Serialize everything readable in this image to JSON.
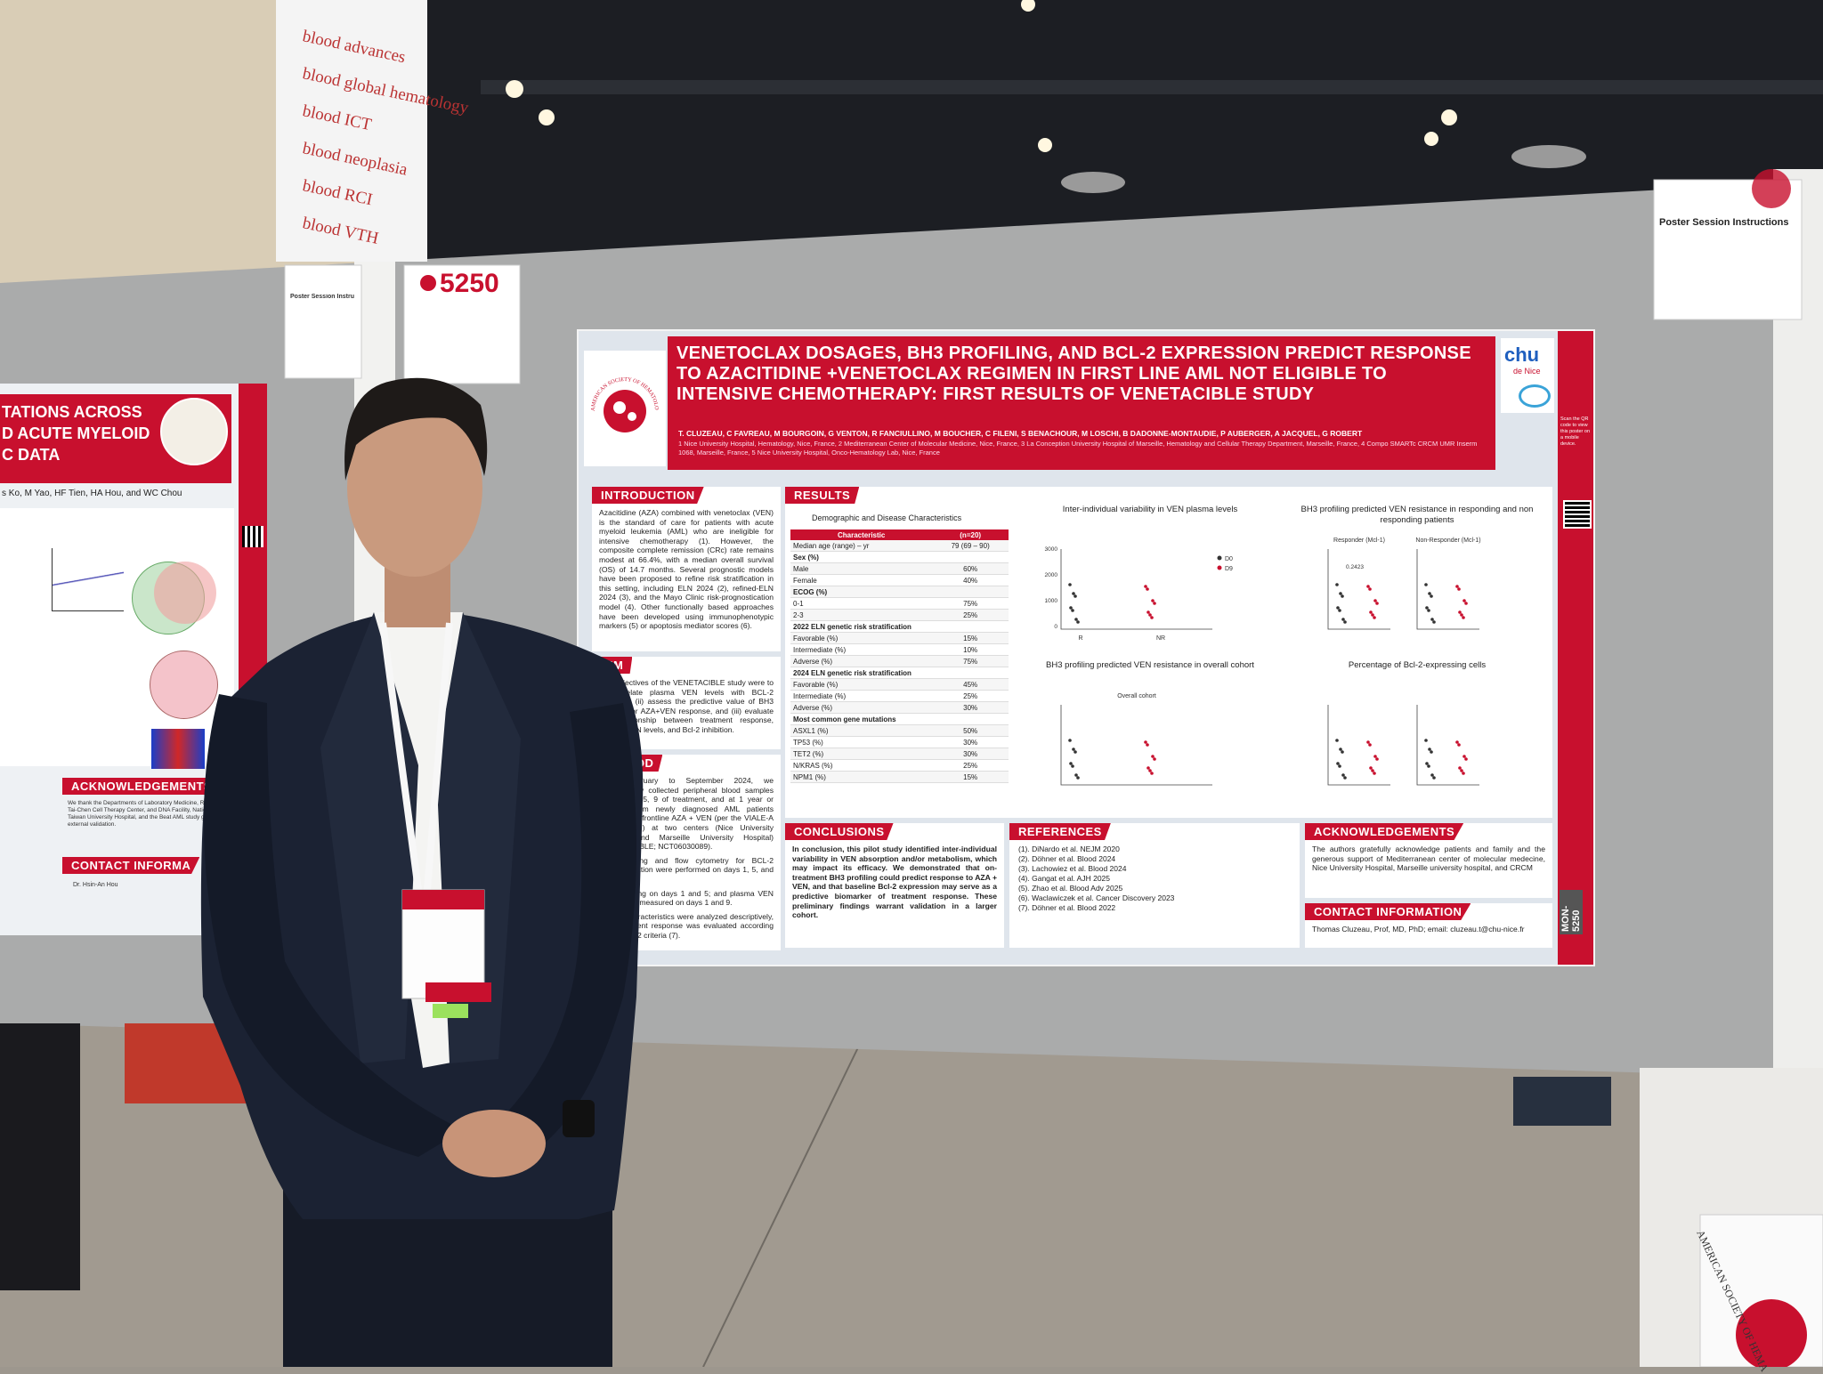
{
  "venue": {
    "banner": [
      "blood advances",
      "blood global hematology",
      "blood ICT",
      "blood neoplasia",
      "blood RCI",
      "blood VTH"
    ],
    "booth_number": "5250",
    "instructions_left": "Poster Session Instru",
    "instructions_right": "Poster Session Instructions",
    "floor_sign": "AMERICAN SOCIETY OF HEMA"
  },
  "left_poster": {
    "title_lines": [
      "TATIONS ACROSS",
      "D ACUTE MYELOID",
      "C DATA"
    ],
    "authors": "s Ko, M Yao, HF Tien, HA Hou, and WC Chou",
    "acknowledgements_heading": "ACKNOWLEDGEMENTS",
    "acknowledgements_text": "We thank the Departments of Laboratory Medicine, Research, Tai-Chen Cell Therapy Center, and DNA Facility, National Taiwan University Hospital, and the Beat AML study group for external validation.",
    "contact_heading": "CONTACT INFORMA",
    "contact_name": "Dr. Hsin-An Hou"
  },
  "poster": {
    "society": "AMERICAN SOCIETY OF HEMATOLOGY",
    "title": "VENETOCLAX DOSAGES, BH3 PROFILING, AND BCL-2 EXPRESSION PREDICT RESPONSE TO AZACITIDINE +VENETOCLAX REGIMEN IN FIRST LINE AML NOT ELIGIBLE TO INTENSIVE CHEMOTHERAPY: FIRST RESULTS OF VENETACIBLE STUDY",
    "authors": "T. CLUZEAU, C FAVREAU, M BOURGOIN, G VENTON, R FANCIULLINO, M BOUCHER, C FILENI, S BENACHOUR, M LOSCHI, B DADONNE-MONTAUDIE, P AUBERGER, A JACQUEL, G ROBERT",
    "affiliations": "1 Nice University Hospital, Hematology, Nice, France, 2 Mediterranean Center of Molecular Medicine, Nice, France, 3 La Conception University Hospital of Marseille, Hematology and Cellular Therapy Department, Marseille, France, 4 Compo SMARTc CRCM UMR Inserm 1068, Marseille, France, 5 Nice University Hospital, Onco-Hematology Lab, Nice, France",
    "institution_logo": [
      "chu",
      "de Nice"
    ],
    "introduction": {
      "heading": "INTRODUCTION",
      "text": "Azacitidine (AZA) combined with venetoclax (VEN) is the standard of care for patients with acute myeloid leukemia (AML) who are ineligible for intensive chemotherapy (1). However, the composite complete remission (CRc) rate remains modest at 66.4%, with a median overall survival (OS) of 14.7 months. Several prognostic models have been proposed to refine risk stratification in this setting, including ELN 2024 (2), refined-ELN 2024 (3), and the Mayo Clinic risk-prognostication model (4). Other functionally based approaches have been developed using immunophenotypic markers (5) or apoptosis mediator scores (6)."
    },
    "aim": {
      "heading": "AIM",
      "text": "The objectives of the VENETACIBLE study were to (i) correlate plasma VEN levels with BCL-2 inhibition, (ii) assess the predictive value of BH3 profiling for AZA+VEN response, and (iii) evaluate the relationship between treatment response, plasma VEN levels, and Bcl-2 inhibition."
    },
    "method": {
      "heading": "METHOD",
      "paragraphs": [
        "From February to September 2024, we prospectively collected peripheral blood samples on days 1, 5, 9 of treatment, and at 1 year or relapse, from newly diagnosed AML patients treated with frontline AZA + VEN (per the VIALE-A protocol (1)) at two centers (Nice University Hospital and Marseille University Hospital) (VENETACIBLE; NCT06030089).",
        "BH3 profiling and flow cytometry for BCL-2 phosphorylation were performed on days 1, 5, and 9;",
        "Bcl-2 staining on days 1 and 5; and plasma VEN levels were measured on days 1 and 9.",
        "Patient characteristics were analyzed descriptively, and treatment response was evaluated according to ELN 2022 criteria (7)."
      ]
    },
    "results": {
      "heading": "RESULTS",
      "table_title": "Demographic and  Disease Characteristics",
      "table": {
        "header": [
          "Characteristic",
          "(n=20)"
        ],
        "rows": [
          [
            "Median age (range) – yr",
            "79 (69 – 90)"
          ],
          [
            "Sex (%)"
          ],
          [
            "Male",
            "60%"
          ],
          [
            "Female",
            "40%"
          ],
          [
            "ECOG (%)"
          ],
          [
            "0-1",
            "75%"
          ],
          [
            "2-3",
            "25%"
          ],
          [
            "2022 ELN genetic risk stratification"
          ],
          [
            "Favorable (%)",
            "15%"
          ],
          [
            "Intermediate (%)",
            "10%"
          ],
          [
            "Adverse (%)",
            "75%"
          ],
          [
            "2024 ELN genetic risk stratification"
          ],
          [
            "Favorable (%)",
            "45%"
          ],
          [
            "Intermediate (%)",
            "25%"
          ],
          [
            "Adverse (%)",
            "30%"
          ],
          [
            "Most common gene mutations"
          ],
          [
            "ASXL1 (%)",
            "50%"
          ],
          [
            "TP53 (%)",
            "30%"
          ],
          [
            "TET2 (%)",
            "30%"
          ],
          [
            "N/KRAS (%)",
            "25%"
          ],
          [
            "NPM1 (%)",
            "15%"
          ]
        ]
      },
      "charts": [
        {
          "title": "Inter-individual variability in VEN plasma levels",
          "yticks": [
            3000,
            2000,
            1000,
            0
          ],
          "categories": [
            "R",
            "NR"
          ],
          "legend": [
            "D0",
            "D9"
          ]
        },
        {
          "title": "BH3 profiling predicted VEN resistance in responding and non responding patients",
          "panels": [
            "Responder (Mcl-1)",
            "Non-Responder (Mcl-1)"
          ],
          "annotation": "0.2423"
        },
        {
          "title": "BH3 profiling predicted VEN resistance in overall cohort",
          "panels": [
            "Overall cohort"
          ]
        },
        {
          "title": "Percentage of Bcl-2-expressing cells"
        }
      ]
    },
    "conclusions": {
      "heading": "CONCLUSIONS",
      "text": "In conclusion, this pilot study identified inter-individual variability in VEN absorption and/or metabolism, which may impact its efficacy. We demonstrated that on-treatment BH3 profiling could predict response to AZA + VEN, and that baseline Bcl-2 expression may serve as a predictive biomarker of treatment response. These preliminary findings warrant validation in a larger cohort."
    },
    "references": {
      "heading": "REFERENCES",
      "items": [
        "(1). DiNardo et al. NEJM 2020",
        "(2). Döhner et al. Blood 2024",
        "(3). Lachowiez et al. Blood 2024",
        "(4). Gangat et al. AJH 2025",
        "(5). Zhao et al. Blood Adv 2025",
        "(6). Waclawiczek et al. Cancer Discovery 2023",
        "(7). Döhner et al. Blood 2022"
      ]
    },
    "acknowledgements": {
      "heading": "ACKNOWLEDGEMENTS",
      "text": "The authors gratefully acknowledge patients and family and the generous support of Mediterranean center of molecular medecine, Nice University Hospital, Marseille university hospital, and CRCM"
    },
    "contact": {
      "heading": "CONTACT INFORMATION",
      "text": "Thomas Cluzeau, Prof, MD, PhD; email: cluzeau.t@chu-nice.fr"
    },
    "side_strip": {
      "qr_caption": "Scan the QR code to view this poster on a mobile device.",
      "code": "MON-5250"
    }
  }
}
